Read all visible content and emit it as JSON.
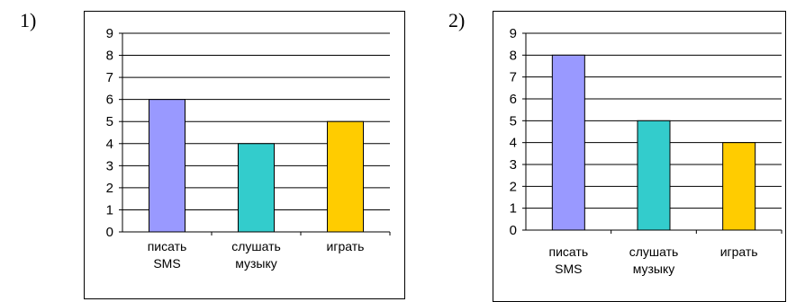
{
  "panels": [
    {
      "label": "1)"
    },
    {
      "label": "2)"
    }
  ],
  "chart_data": [
    {
      "type": "bar",
      "title": "",
      "xlabel": "",
      "ylabel": "",
      "ylim": [
        0,
        9
      ],
      "yticks": [
        0,
        1,
        2,
        3,
        4,
        5,
        6,
        7,
        8,
        9
      ],
      "grid": true,
      "categories": [
        [
          "писать",
          "SMS"
        ],
        [
          "слушать",
          "музыку"
        ],
        [
          "играть"
        ]
      ],
      "values": [
        6,
        4,
        5
      ],
      "colors": [
        "#9999ff",
        "#33cccc",
        "#ffcc00"
      ]
    },
    {
      "type": "bar",
      "title": "",
      "xlabel": "",
      "ylabel": "",
      "ylim": [
        0,
        9
      ],
      "yticks": [
        0,
        1,
        2,
        3,
        4,
        5,
        6,
        7,
        8,
        9
      ],
      "grid": true,
      "categories": [
        [
          "писать",
          "SMS"
        ],
        [
          "слушать",
          "музыку"
        ],
        [
          "играть"
        ]
      ],
      "values": [
        8,
        5,
        4
      ],
      "colors": [
        "#9999ff",
        "#33cccc",
        "#ffcc00"
      ]
    }
  ]
}
